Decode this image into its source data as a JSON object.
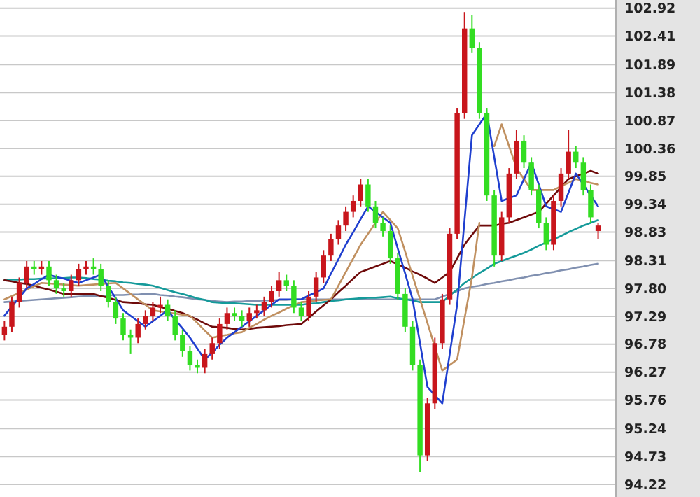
{
  "chart_data": {
    "type": "candlestick",
    "grid": "y",
    "tick_labels": "y",
    "categories": [
      null,
      null,
      null,
      null,
      null,
      null,
      null,
      null,
      null,
      null,
      null,
      null,
      null,
      null,
      null,
      null,
      null,
      null,
      null,
      null,
      null,
      null,
      null,
      null,
      null,
      null,
      null,
      null,
      null,
      null,
      null,
      null,
      null,
      null,
      null,
      null,
      null,
      null,
      null,
      null,
      null,
      null,
      null,
      null,
      null,
      null,
      null,
      null,
      null,
      null,
      null,
      null,
      null,
      null,
      null,
      null,
      null,
      null,
      null,
      null,
      null,
      null,
      null,
      null,
      null,
      null,
      null,
      null,
      null,
      null,
      null,
      null,
      null,
      null,
      null,
      null,
      null,
      null,
      null,
      null,
      null
    ],
    "ylim": [
      93.99,
      103.07
    ],
    "yticks": [
      {
        "value": 94.22,
        "label": "94.22"
      },
      {
        "value": 94.73,
        "label": "94.73"
      },
      {
        "value": 95.24,
        "label": "95.24"
      },
      {
        "value": 95.76,
        "label": "95.76"
      },
      {
        "value": 96.27,
        "label": "96.27"
      },
      {
        "value": 96.78,
        "label": "96.78"
      },
      {
        "value": 97.29,
        "label": "97.29"
      },
      {
        "value": 97.8,
        "label": "97.80"
      },
      {
        "value": 98.31,
        "label": "98.31"
      },
      {
        "value": 98.83,
        "label": "98.83"
      },
      {
        "value": 99.34,
        "label": "99.34"
      },
      {
        "value": 99.85,
        "label": "99.85"
      },
      {
        "value": 100.36,
        "label": "100.36"
      },
      {
        "value": 100.87,
        "label": "100.87"
      },
      {
        "value": 101.38,
        "label": "101.38"
      },
      {
        "value": 101.89,
        "label": "101.89"
      },
      {
        "value": 102.41,
        "label": "102.41"
      },
      {
        "value": 102.92,
        "label": "102.92"
      }
    ],
    "series": [
      {
        "type": "line",
        "color": "#8090b0",
        "values": [
          97.55,
          97.56,
          97.57,
          97.58,
          97.59,
          97.6,
          97.61,
          97.62,
          97.63,
          97.64,
          97.65,
          97.66,
          97.66,
          97.67,
          97.67,
          97.68,
          97.68,
          97.69,
          97.69,
          97.7,
          97.7,
          97.68,
          97.67,
          97.65,
          97.64,
          97.62,
          97.6,
          97.59,
          97.57,
          97.56,
          97.55,
          97.56,
          97.56,
          97.57,
          97.57,
          97.58,
          97.58,
          97.59,
          97.59,
          97.6,
          97.6,
          97.6,
          97.6,
          97.6,
          97.6,
          97.6,
          97.6,
          97.6,
          97.6,
          97.6,
          97.6,
          97.6,
          97.6,
          97.6,
          97.6,
          97.6,
          97.6,
          97.6,
          97.6,
          97.65,
          97.7,
          97.75,
          97.8,
          97.83,
          97.85,
          97.88,
          97.9,
          97.93,
          97.95,
          97.98,
          98.0,
          98.03,
          98.05,
          98.08,
          98.1,
          98.13,
          98.15,
          98.18,
          98.2,
          98.23,
          98.25
        ]
      },
      {
        "type": "line",
        "color": "#159a9a",
        "values": [
          97.95,
          97.96,
          97.96,
          97.97,
          97.97,
          97.98,
          97.98,
          97.99,
          97.99,
          98.0,
          98.0,
          97.99,
          97.97,
          97.96,
          97.94,
          97.93,
          97.91,
          97.9,
          97.88,
          97.87,
          97.85,
          97.81,
          97.77,
          97.73,
          97.7,
          97.66,
          97.62,
          97.59,
          97.55,
          97.54,
          97.53,
          97.53,
          97.52,
          97.51,
          97.5,
          97.5,
          97.5,
          97.5,
          97.5,
          97.5,
          97.5,
          97.52,
          97.53,
          97.55,
          97.57,
          97.58,
          97.6,
          97.61,
          97.62,
          97.63,
          97.63,
          97.64,
          97.65,
          97.62,
          97.6,
          97.58,
          97.55,
          97.55,
          97.55,
          97.55,
          97.67,
          97.78,
          97.9,
          97.99,
          98.08,
          98.16,
          98.25,
          98.3,
          98.35,
          98.4,
          98.45,
          98.51,
          98.58,
          98.64,
          98.7,
          98.76,
          98.83,
          98.89,
          98.95,
          99.0,
          99.05
        ]
      },
      {
        "type": "line",
        "color": "#6e0a0a",
        "values": [
          97.95,
          97.93,
          97.9,
          97.88,
          97.85,
          97.81,
          97.78,
          97.74,
          97.7,
          97.7,
          97.7,
          97.7,
          97.7,
          97.66,
          97.63,
          97.59,
          97.55,
          97.54,
          97.53,
          97.51,
          97.5,
          97.46,
          97.43,
          97.39,
          97.35,
          97.29,
          97.23,
          97.16,
          97.1,
          97.09,
          97.08,
          97.06,
          97.05,
          97.06,
          97.08,
          97.09,
          97.1,
          97.11,
          97.13,
          97.14,
          97.15,
          97.26,
          97.38,
          97.49,
          97.6,
          97.73,
          97.85,
          97.98,
          98.1,
          98.15,
          98.2,
          98.25,
          98.3,
          98.24,
          98.18,
          98.11,
          98.05,
          97.98,
          97.9,
          98.0,
          98.1,
          98.35,
          98.6,
          98.78,
          98.95,
          98.95,
          98.95,
          98.98,
          99.0,
          99.05,
          99.1,
          99.15,
          99.2,
          99.35,
          99.5,
          99.65,
          99.8,
          99.85,
          99.9,
          99.95,
          99.9
        ]
      },
      {
        "type": "line",
        "color": "#c09060",
        "values": [
          97.6,
          97.66,
          97.72,
          97.78,
          97.84,
          97.9,
          97.89,
          97.88,
          97.87,
          97.86,
          97.85,
          97.86,
          97.87,
          97.88,
          97.89,
          97.9,
          97.8,
          97.7,
          97.6,
          97.5,
          97.4,
          97.38,
          97.36,
          97.34,
          97.32,
          97.3,
          97.17,
          97.03,
          96.9,
          96.93,
          96.95,
          96.98,
          97.0,
          97.08,
          97.15,
          97.23,
          97.3,
          97.36,
          97.43,
          97.49,
          97.55,
          97.56,
          97.58,
          97.59,
          97.6,
          97.85,
          98.1,
          98.35,
          98.6,
          98.8,
          99.0,
          99.2,
          99.05,
          98.9,
          98.47,
          98.03,
          97.6,
          97.17,
          96.73,
          96.3,
          96.4,
          96.5,
          97.25,
          98.0,
          99.0,
          null,
          100.4,
          100.8,
          100.4,
          100.0,
          99.8,
          99.6,
          99.6,
          99.6,
          99.6,
          99.67,
          99.73,
          99.8,
          99.77,
          99.73,
          99.7
        ]
      },
      {
        "type": "line",
        "color": "#1f3fcf",
        "values": [
          97.3,
          97.47,
          97.63,
          97.8,
          97.88,
          97.97,
          98.05,
          98.01,
          97.98,
          97.94,
          97.9,
          97.95,
          98.0,
          98.05,
          97.83,
          97.62,
          97.4,
          97.3,
          97.2,
          97.1,
          97.2,
          97.3,
          97.4,
          97.23,
          97.07,
          96.9,
          96.7,
          96.5,
          96.63,
          96.77,
          96.9,
          97.0,
          97.1,
          97.2,
          97.3,
          97.4,
          97.5,
          97.6,
          97.6,
          97.6,
          97.6,
          97.67,
          97.73,
          97.8,
          98.07,
          98.33,
          98.6,
          98.83,
          99.07,
          99.3,
          99.2,
          99.1,
          99.0,
          98.53,
          98.07,
          97.6,
          96.8,
          96.0,
          95.85,
          95.7,
          96.6,
          97.5,
          99.05,
          100.6,
          100.8,
          101.0,
          100.2,
          99.4,
          99.45,
          99.5,
          99.8,
          100.1,
          99.7,
          99.3,
          99.25,
          99.2,
          99.55,
          99.9,
          99.7,
          99.5,
          99.3
        ]
      },
      {
        "type": "candlestick",
        "colors": [
          "#c8161c",
          "#c8161c",
          "#c8161c",
          "#c8161c",
          "#33dd22",
          "#c8161c",
          "#33dd22",
          "#33dd22",
          "#33dd22",
          "#c8161c",
          "#c8161c",
          "#c8161c",
          "#33dd22",
          "#33dd22",
          "#33dd22",
          "#33dd22",
          "#33dd22",
          "#33dd22",
          "#c8161c",
          "#c8161c",
          "#c8161c",
          "#c8161c",
          "#33dd22",
          "#33dd22",
          "#33dd22",
          "#33dd22",
          "#33dd22",
          "#c8161c",
          "#c8161c",
          "#c8161c",
          "#c8161c",
          "#33dd22",
          "#33dd22",
          "#c8161c",
          "#c8161c",
          "#c8161c",
          "#c8161c",
          "#c8161c",
          "#33dd22",
          "#33dd22",
          "#33dd22",
          "#c8161c",
          "#c8161c",
          "#c8161c",
          "#c8161c",
          "#c8161c",
          "#c8161c",
          "#c8161c",
          "#c8161c",
          "#33dd22",
          "#33dd22",
          "#33dd22",
          "#33dd22",
          "#33dd22",
          "#33dd22",
          "#33dd22",
          "#33dd22",
          "#c8161c",
          "#c8161c",
          "#c8161c",
          "#c8161c",
          "#c8161c",
          "#c8161c",
          "#33dd22",
          "#33dd22",
          "#33dd22",
          "#33dd22",
          "#c8161c",
          "#c8161c",
          "#c8161c",
          "#33dd22",
          "#33dd22",
          "#33dd22",
          "#33dd22",
          "#c8161c",
          "#c8161c",
          "#c8161c",
          "#33dd22",
          "#33dd22",
          "#33dd22",
          "#c8161c"
        ],
        "ohlc": [
          [
            96.95,
            97.2,
            96.85,
            97.1
          ],
          [
            97.1,
            97.65,
            97.0,
            97.55
          ],
          [
            97.55,
            98.0,
            97.45,
            97.9
          ],
          [
            97.9,
            98.3,
            97.8,
            98.2
          ],
          [
            98.2,
            98.3,
            98.05,
            98.15
          ],
          [
            98.15,
            98.3,
            98.05,
            98.2
          ],
          [
            98.2,
            98.3,
            97.85,
            97.95
          ],
          [
            97.95,
            98.05,
            97.7,
            97.8
          ],
          [
            97.8,
            97.9,
            97.65,
            97.75
          ],
          [
            97.75,
            98.05,
            97.65,
            97.95
          ],
          [
            97.95,
            98.25,
            97.85,
            98.15
          ],
          [
            98.15,
            98.3,
            98.05,
            98.2
          ],
          [
            98.2,
            98.35,
            98.05,
            98.15
          ],
          [
            98.15,
            98.25,
            97.75,
            97.85
          ],
          [
            97.85,
            97.95,
            97.45,
            97.55
          ],
          [
            97.55,
            97.65,
            97.15,
            97.25
          ],
          [
            97.25,
            97.35,
            96.85,
            96.95
          ],
          [
            96.95,
            97.05,
            96.6,
            96.9
          ],
          [
            96.9,
            97.25,
            96.8,
            97.15
          ],
          [
            97.15,
            97.4,
            97.05,
            97.3
          ],
          [
            97.3,
            97.55,
            97.2,
            97.45
          ],
          [
            97.45,
            97.65,
            97.35,
            97.5
          ],
          [
            97.5,
            97.6,
            97.2,
            97.3
          ],
          [
            97.3,
            97.4,
            96.85,
            96.95
          ],
          [
            96.95,
            97.05,
            96.55,
            96.65
          ],
          [
            96.65,
            96.75,
            96.3,
            96.4
          ],
          [
            96.4,
            96.5,
            96.25,
            96.35
          ],
          [
            96.35,
            96.7,
            96.25,
            96.6
          ],
          [
            96.6,
            96.9,
            96.5,
            96.8
          ],
          [
            96.8,
            97.25,
            96.7,
            97.15
          ],
          [
            97.15,
            97.45,
            97.05,
            97.35
          ],
          [
            97.35,
            97.45,
            97.2,
            97.3
          ],
          [
            97.3,
            97.4,
            97.1,
            97.2
          ],
          [
            97.2,
            97.45,
            97.1,
            97.35
          ],
          [
            97.35,
            97.5,
            97.25,
            97.4
          ],
          [
            97.4,
            97.65,
            97.3,
            97.55
          ],
          [
            97.55,
            97.85,
            97.45,
            97.75
          ],
          [
            97.75,
            98.1,
            97.65,
            97.95
          ],
          [
            97.95,
            98.05,
            97.75,
            97.85
          ],
          [
            97.85,
            97.95,
            97.35,
            97.45
          ],
          [
            97.45,
            97.55,
            97.2,
            97.3
          ],
          [
            97.3,
            97.75,
            97.2,
            97.65
          ],
          [
            97.65,
            98.1,
            97.55,
            98.0
          ],
          [
            98.0,
            98.5,
            97.9,
            98.4
          ],
          [
            98.4,
            98.8,
            98.3,
            98.7
          ],
          [
            98.7,
            99.05,
            98.6,
            98.95
          ],
          [
            98.95,
            99.3,
            98.85,
            99.2
          ],
          [
            99.2,
            99.5,
            99.1,
            99.4
          ],
          [
            99.4,
            99.8,
            99.3,
            99.7
          ],
          [
            99.7,
            99.8,
            99.2,
            99.3
          ],
          [
            99.3,
            99.4,
            98.9,
            99.0
          ],
          [
            99.0,
            99.1,
            98.75,
            98.85
          ],
          [
            98.85,
            98.95,
            98.25,
            98.35
          ],
          [
            98.35,
            98.45,
            97.6,
            97.7
          ],
          [
            97.7,
            97.8,
            97.0,
            97.1
          ],
          [
            97.1,
            97.2,
            96.3,
            96.4
          ],
          [
            96.4,
            96.5,
            94.45,
            94.75
          ],
          [
            94.75,
            95.8,
            94.65,
            95.7
          ],
          [
            95.7,
            96.9,
            95.6,
            96.8
          ],
          [
            96.8,
            97.7,
            96.7,
            97.6
          ],
          [
            97.6,
            98.9,
            97.5,
            98.8
          ],
          [
            98.8,
            101.1,
            98.7,
            101.0
          ],
          [
            101.0,
            102.85,
            100.9,
            102.55
          ],
          [
            102.55,
            102.8,
            102.1,
            102.2
          ],
          [
            102.2,
            102.3,
            100.9,
            101.0
          ],
          [
            101.0,
            101.1,
            99.4,
            99.5
          ],
          [
            99.5,
            99.6,
            98.2,
            98.4
          ],
          [
            98.4,
            99.2,
            98.3,
            99.1
          ],
          [
            99.1,
            100.0,
            99.0,
            99.9
          ],
          [
            99.9,
            100.7,
            99.8,
            100.5
          ],
          [
            100.5,
            100.6,
            100.0,
            100.1
          ],
          [
            100.1,
            100.2,
            99.5,
            99.6
          ],
          [
            99.6,
            99.7,
            98.9,
            99.0
          ],
          [
            99.0,
            99.1,
            98.5,
            98.6
          ],
          [
            98.6,
            99.5,
            98.5,
            99.4
          ],
          [
            99.4,
            100.0,
            99.3,
            99.9
          ],
          [
            99.9,
            100.7,
            99.8,
            100.3
          ],
          [
            100.3,
            100.4,
            100.0,
            100.1
          ],
          [
            100.1,
            100.2,
            99.5,
            99.6
          ],
          [
            99.6,
            99.7,
            99.0,
            99.1
          ],
          [
            98.85,
            99.0,
            98.7,
            98.95
          ]
        ]
      }
    ]
  }
}
